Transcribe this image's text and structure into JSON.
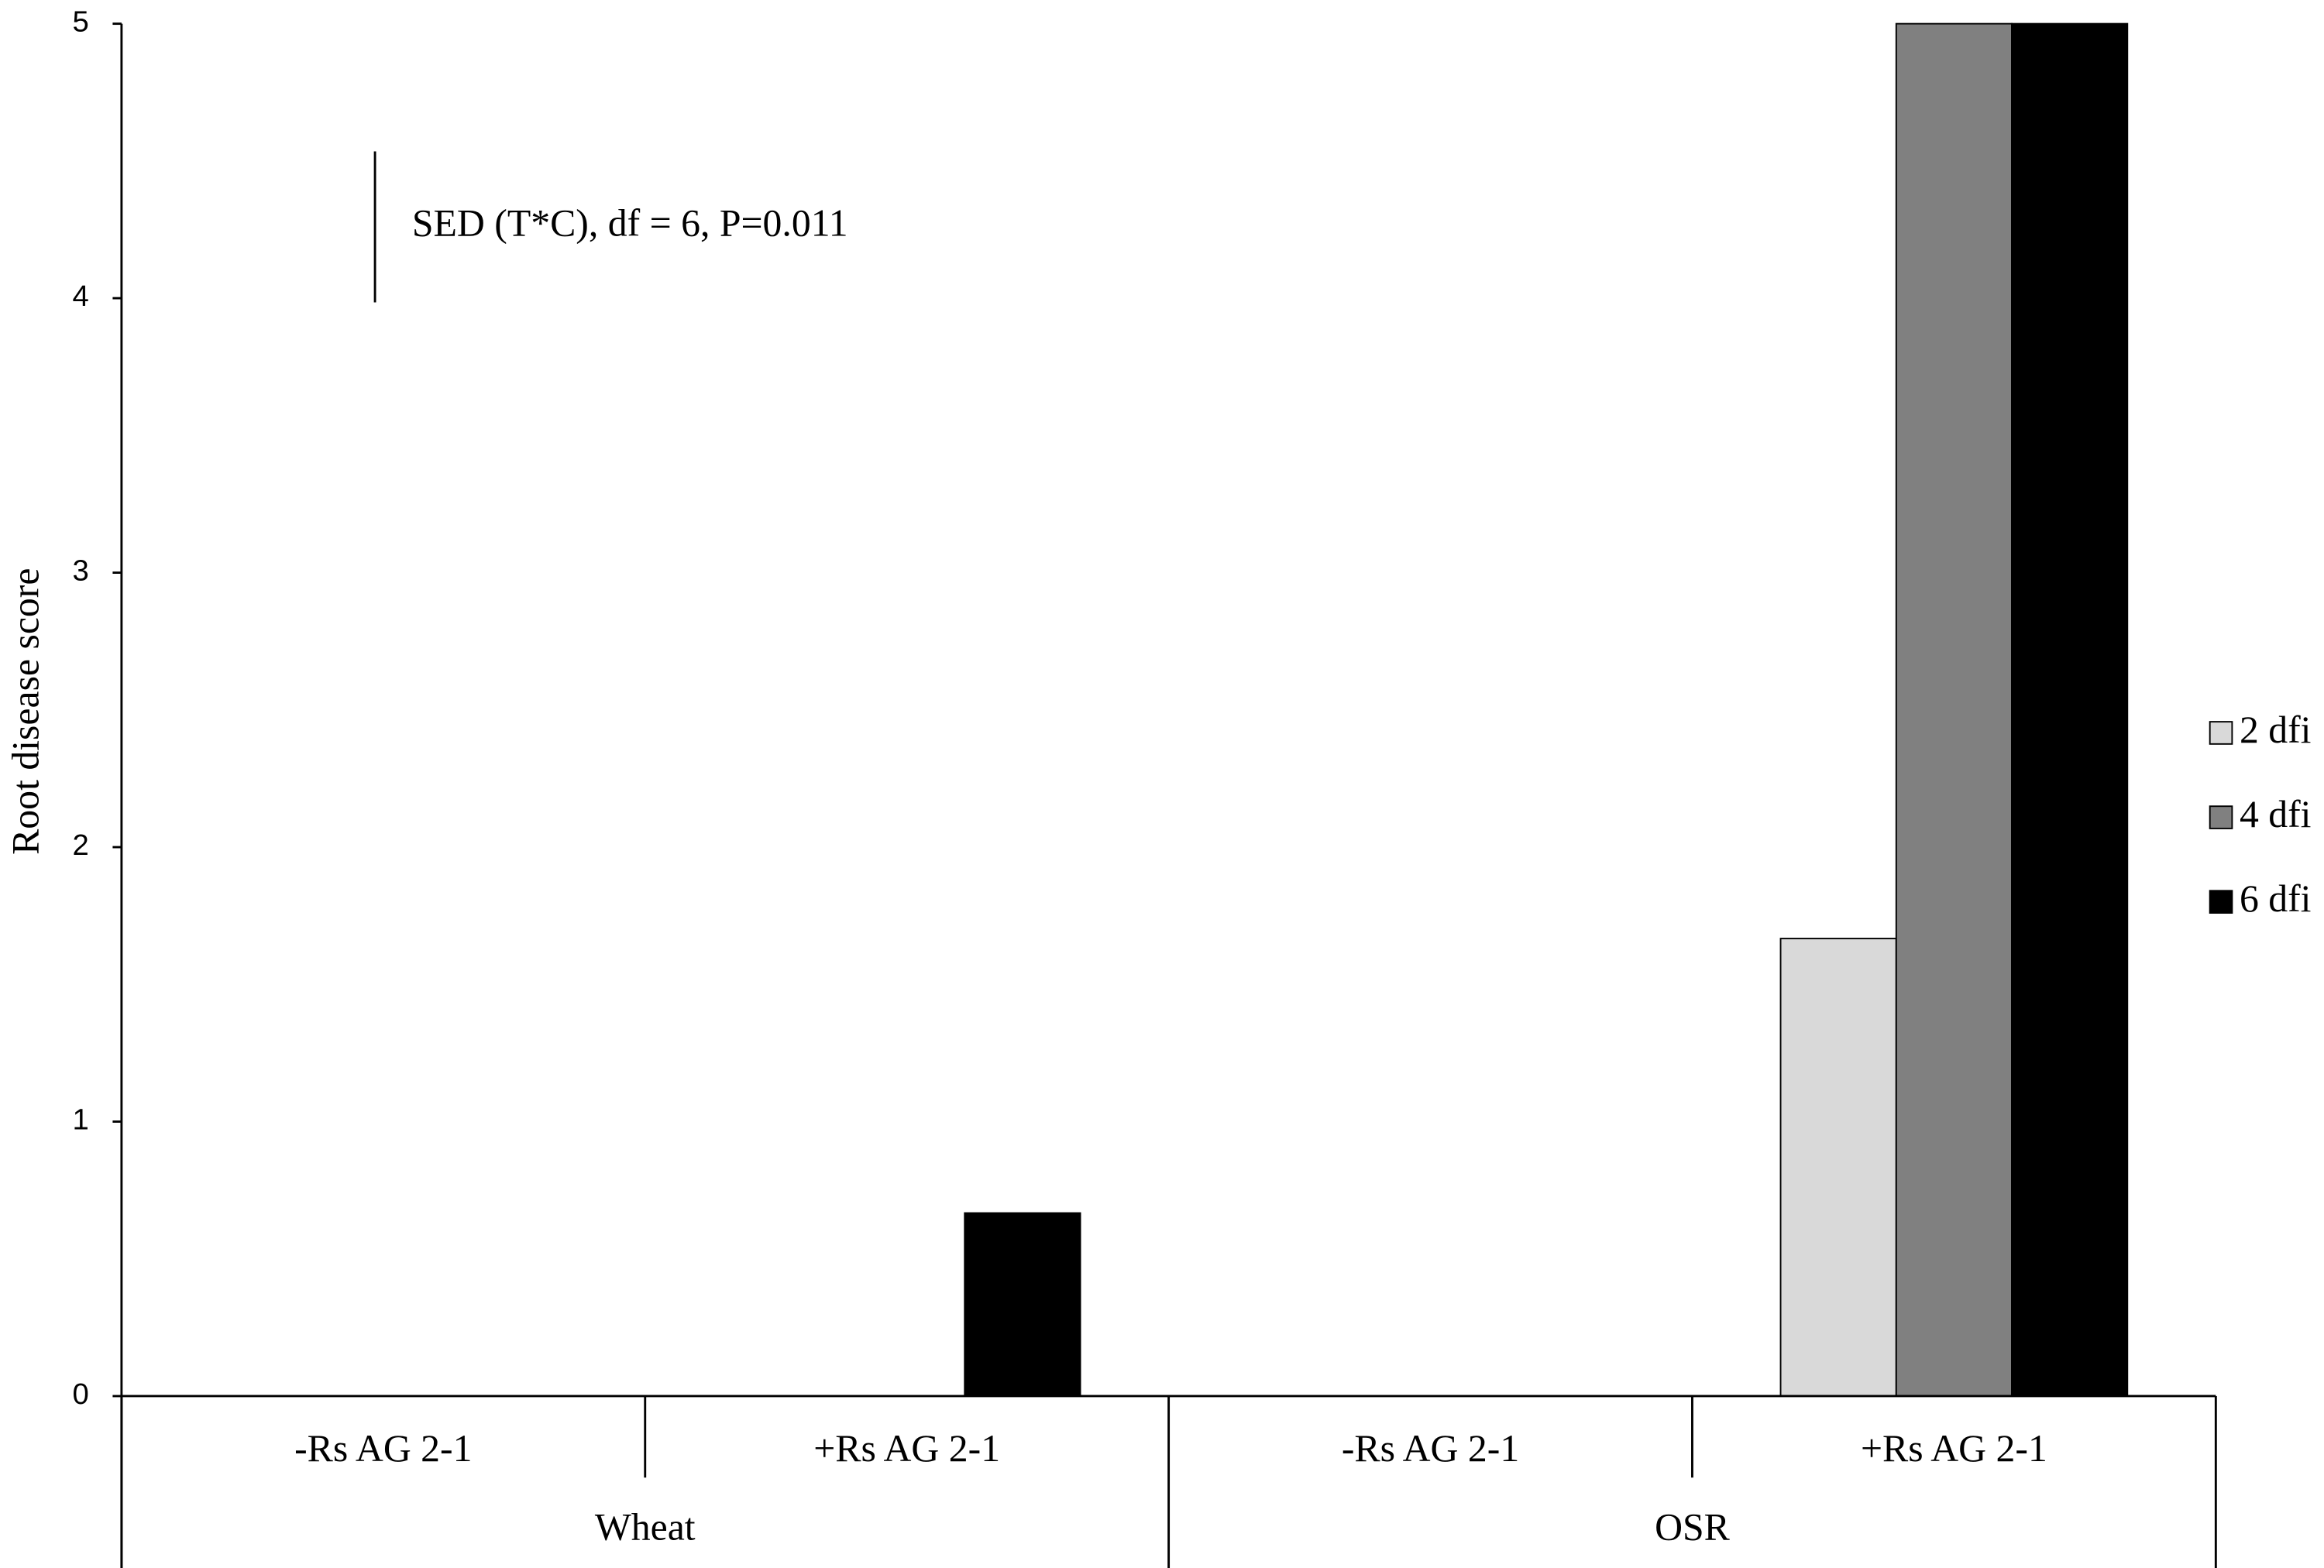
{
  "chart_data": {
    "type": "bar",
    "y_label": "Root  disease score",
    "categories": [
      "-Rs AG 2-1",
      "+Rs AG 2-1",
      "-Rs AG 2-1",
      "+Rs AG 2-1"
    ],
    "groups": [
      "Wheat",
      "OSR"
    ],
    "series": [
      {
        "name": "2 dfi",
        "color": "#d9d9d9",
        "values": [
          0,
          0,
          0,
          1.667
        ]
      },
      {
        "name": "4 dfi",
        "color": "#808080",
        "values": [
          0,
          0,
          0,
          5
        ]
      },
      {
        "name": "6 dfi",
        "color": "#000000",
        "values": [
          0,
          0.667,
          0,
          5
        ]
      }
    ],
    "ylim": [
      0,
      5
    ],
    "yticks": [
      0,
      1,
      2,
      3,
      4,
      5
    ],
    "annotation": {
      "text": "SED (T*C), df = 6, P=0.011",
      "value": 0.55
    },
    "legend": "right"
  }
}
